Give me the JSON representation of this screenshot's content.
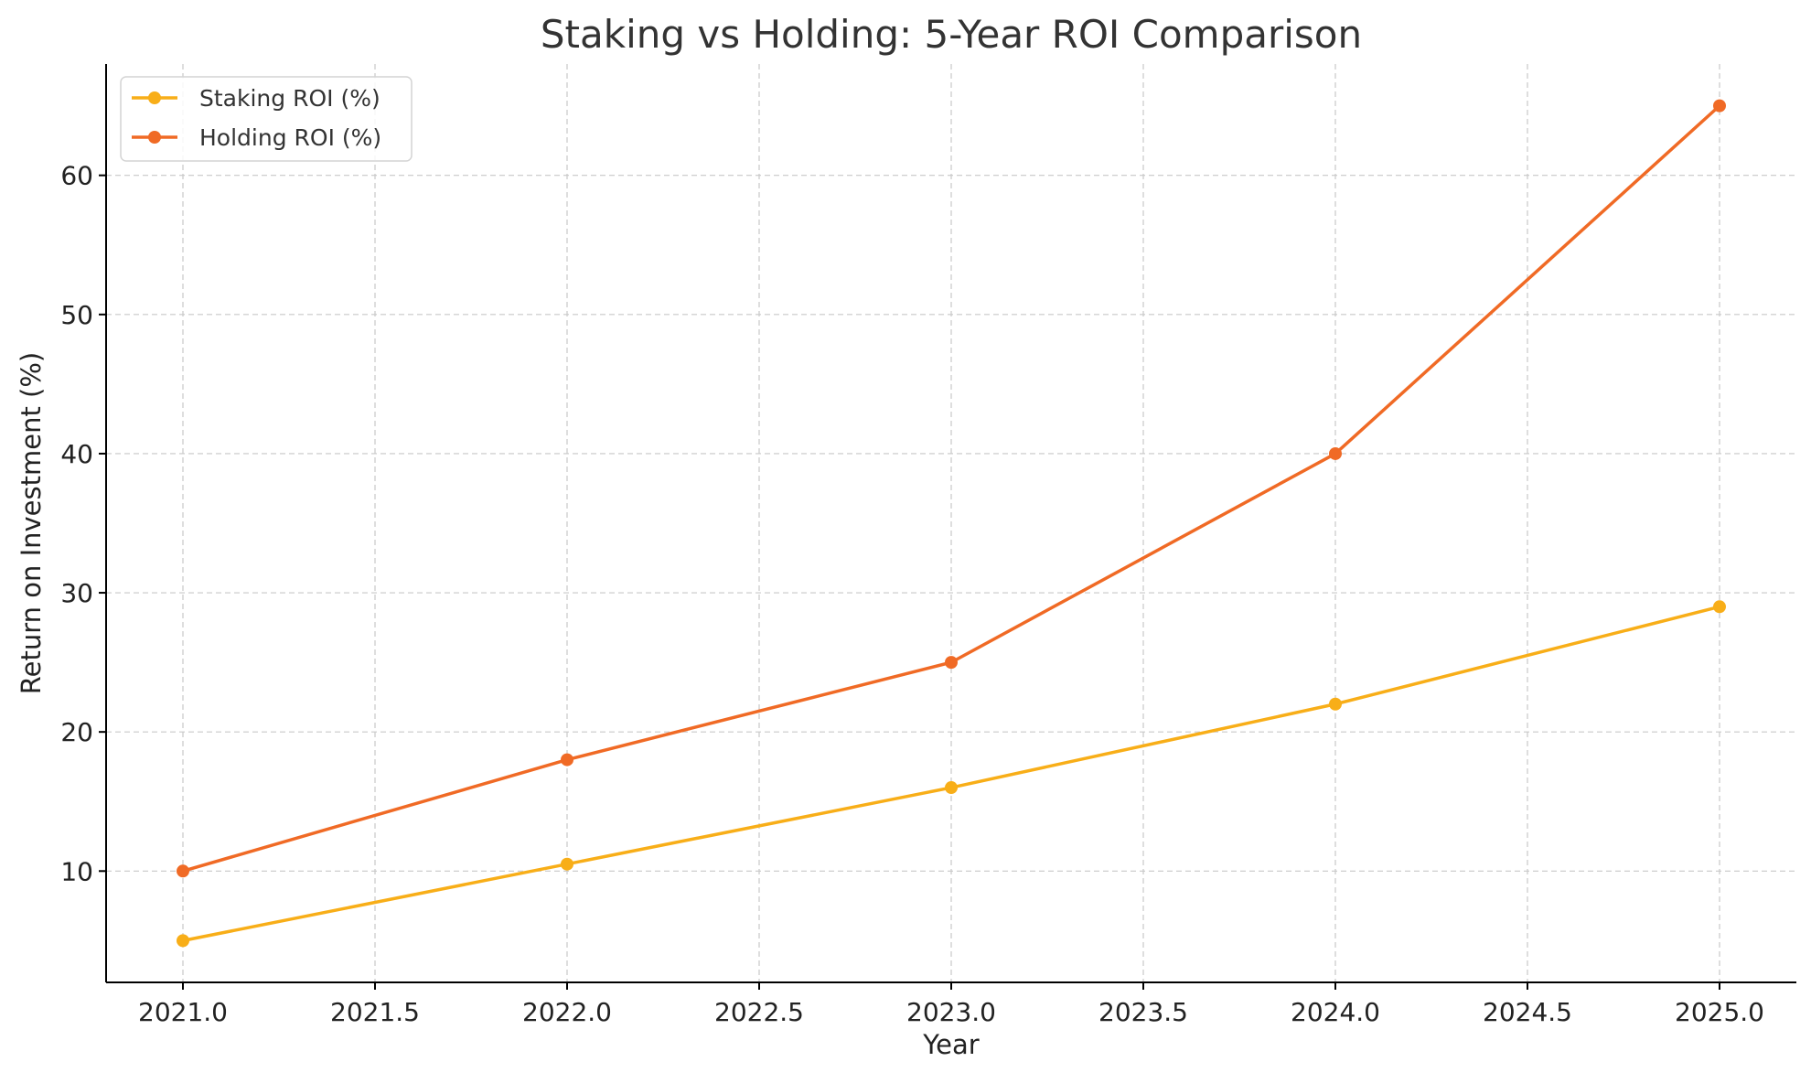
{
  "chart_data": {
    "type": "line",
    "title": "Staking vs Holding: 5-Year ROI Comparison",
    "xlabel": "Year",
    "ylabel": "Return on Investment (%)",
    "x": [
      2021,
      2022,
      2023,
      2024,
      2025
    ],
    "series": [
      {
        "name": "Staking ROI (%)",
        "color": "#f8ae18",
        "values": [
          5,
          10.5,
          16,
          22,
          29
        ]
      },
      {
        "name": "Holding ROI (%)",
        "color": "#f06a25",
        "values": [
          10,
          18,
          25,
          40,
          65
        ]
      }
    ],
    "xlim": [
      2020.8,
      2025.2
    ],
    "ylim": [
      2,
      68
    ],
    "xticks": [
      "2021.0",
      "2021.5",
      "2022.0",
      "2022.5",
      "2023.0",
      "2023.5",
      "2024.0",
      "2024.5",
      "2025.0"
    ],
    "yticks": [
      "10",
      "20",
      "30",
      "40",
      "50",
      "60"
    ],
    "grid": true,
    "legend_position": "top-left"
  }
}
